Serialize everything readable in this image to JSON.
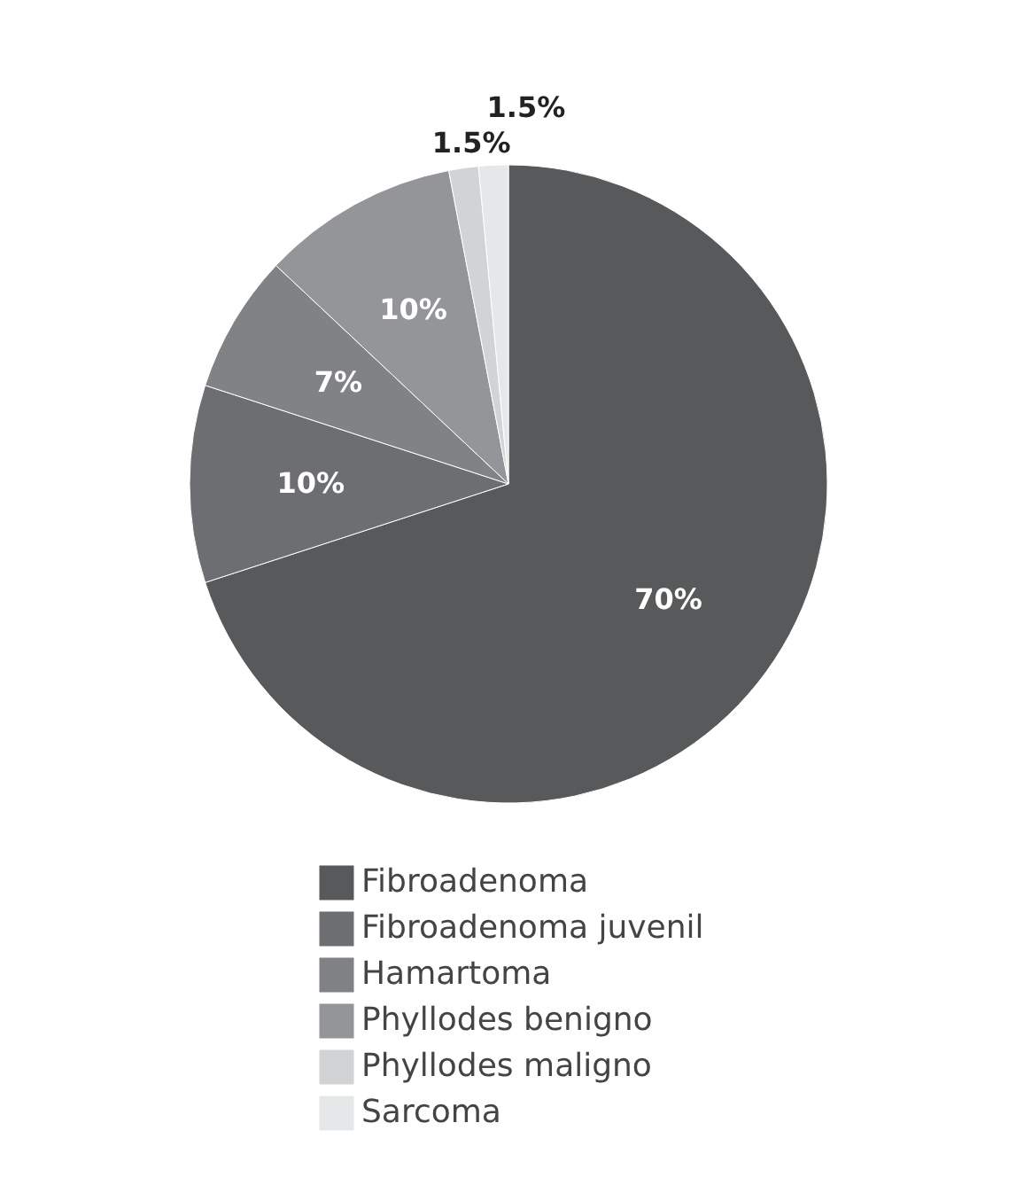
{
  "chart_data": {
    "type": "pie",
    "categories": [
      "Fibroadenoma",
      "Fibroadenoma juvenil",
      "Hamartoma",
      "Phyllodes benigno",
      "Phyllodes maligno",
      "Sarcoma"
    ],
    "values": [
      70,
      10,
      7,
      10,
      1.5,
      1.5
    ],
    "value_labels": [
      "70%",
      "10%",
      "7%",
      "10%",
      "1.5%",
      "1.5%"
    ],
    "colors": [
      "#58595b",
      "#6d6e71",
      "#808285",
      "#939598",
      "#d1d3d4",
      "#e6e7e8"
    ],
    "legend": "bottom"
  }
}
